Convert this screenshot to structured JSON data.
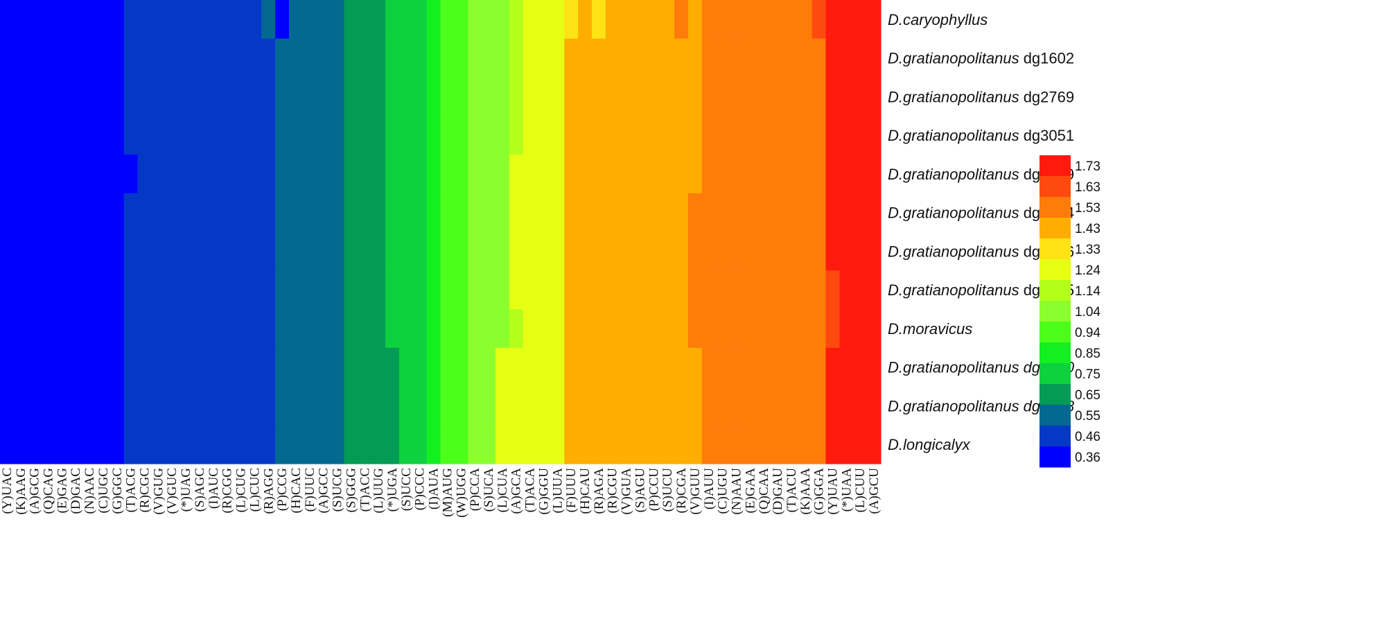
{
  "chart_data": {
    "type": "heatmap",
    "title": "",
    "xlabel": "",
    "ylabel": "",
    "columns": [
      "(Y)UAC",
      "(K)AAG",
      "(A)GCG",
      "(Q)CAG",
      "(E)GAG",
      "(D)GAC",
      "(N)AAC",
      "(C)UGC",
      "(G)GGC",
      "(T)ACG",
      "(R)CGC",
      "(V)GUG",
      "(V)GUC",
      "(*)UAG",
      "(S)AGC",
      "(I)AUC",
      "(R)CGG",
      "(L)CUG",
      "(L)CUC",
      "(R)AGG",
      "(P)CCG",
      "(H)CAC",
      "(F)UUC",
      "(A)GCC",
      "(S)UCG",
      "(S)GGG",
      "(T)ACC",
      "(L)UUG",
      "(*)UGA",
      "(S)UCC",
      "(P)CCC",
      "(I)AUA",
      "(M)AUG",
      "(W)UGG",
      "(P)CCA",
      "(S)UCA",
      "(L)CUA",
      "(A)GCA",
      "(T)ACA",
      "(G)GGU",
      "(L)UUA",
      "(F)UUU",
      "(H)CAU",
      "(R)AGA",
      "(R)CGU",
      "(V)GUA",
      "(S)AGU",
      "(P)CCU",
      "(S)UCU",
      "(R)CGA",
      "(V)GUU",
      "(I)AUU",
      "(C)UGU",
      "(N)AAU",
      "(E)GAA",
      "(Q)CAA",
      "(D)GAU",
      "(T)ACU",
      "(K)AAA",
      "(G)GGA",
      "(Y)UAU",
      "(*)UAA",
      "(L)CUU",
      "(A)GCU"
    ],
    "rows": [
      {
        "name_italic": "D.caryophyllus",
        "name_suffix": "",
        "values": [
          0.36,
          0.36,
          0.36,
          0.36,
          0.36,
          0.36,
          0.36,
          0.36,
          0.36,
          0.46,
          0.46,
          0.46,
          0.46,
          0.46,
          0.46,
          0.46,
          0.46,
          0.46,
          0.46,
          0.55,
          0.36,
          0.55,
          0.55,
          0.55,
          0.55,
          0.65,
          0.65,
          0.65,
          0.75,
          0.75,
          0.75,
          0.85,
          0.94,
          0.94,
          1.04,
          1.04,
          1.04,
          1.14,
          1.24,
          1.24,
          1.24,
          1.33,
          1.43,
          1.33,
          1.43,
          1.43,
          1.43,
          1.43,
          1.43,
          1.53,
          1.43,
          1.53,
          1.53,
          1.53,
          1.53,
          1.53,
          1.53,
          1.53,
          1.53,
          1.63,
          1.73,
          1.73,
          1.73,
          1.73
        ]
      },
      {
        "name_italic": "D.gratianopolitanus",
        "name_suffix": " dg1602",
        "values": [
          0.36,
          0.36,
          0.36,
          0.36,
          0.36,
          0.36,
          0.36,
          0.36,
          0.36,
          0.46,
          0.46,
          0.46,
          0.46,
          0.46,
          0.46,
          0.46,
          0.46,
          0.46,
          0.46,
          0.46,
          0.55,
          0.55,
          0.55,
          0.55,
          0.55,
          0.65,
          0.65,
          0.65,
          0.75,
          0.75,
          0.75,
          0.85,
          0.94,
          0.94,
          1.04,
          1.04,
          1.04,
          1.14,
          1.24,
          1.24,
          1.24,
          1.43,
          1.43,
          1.43,
          1.43,
          1.43,
          1.43,
          1.43,
          1.43,
          1.43,
          1.43,
          1.53,
          1.53,
          1.53,
          1.53,
          1.53,
          1.53,
          1.53,
          1.53,
          1.53,
          1.73,
          1.73,
          1.73,
          1.73
        ]
      },
      {
        "name_italic": "D.gratianopolitanus",
        "name_suffix": " dg2769",
        "values": [
          0.36,
          0.36,
          0.36,
          0.36,
          0.36,
          0.36,
          0.36,
          0.36,
          0.36,
          0.46,
          0.46,
          0.46,
          0.46,
          0.46,
          0.46,
          0.46,
          0.46,
          0.46,
          0.46,
          0.46,
          0.55,
          0.55,
          0.55,
          0.55,
          0.55,
          0.65,
          0.65,
          0.65,
          0.75,
          0.75,
          0.75,
          0.85,
          0.94,
          0.94,
          1.04,
          1.04,
          1.04,
          1.14,
          1.24,
          1.24,
          1.24,
          1.43,
          1.43,
          1.43,
          1.43,
          1.43,
          1.43,
          1.43,
          1.43,
          1.43,
          1.43,
          1.53,
          1.53,
          1.53,
          1.53,
          1.53,
          1.53,
          1.53,
          1.53,
          1.53,
          1.73,
          1.73,
          1.73,
          1.73
        ]
      },
      {
        "name_italic": "D.gratianopolitanus",
        "name_suffix": " dg3051",
        "values": [
          0.36,
          0.36,
          0.36,
          0.36,
          0.36,
          0.36,
          0.36,
          0.36,
          0.36,
          0.46,
          0.46,
          0.46,
          0.46,
          0.46,
          0.46,
          0.46,
          0.46,
          0.46,
          0.46,
          0.46,
          0.55,
          0.55,
          0.55,
          0.55,
          0.55,
          0.65,
          0.65,
          0.65,
          0.75,
          0.75,
          0.75,
          0.85,
          0.94,
          0.94,
          1.04,
          1.04,
          1.04,
          1.14,
          1.24,
          1.24,
          1.24,
          1.43,
          1.43,
          1.43,
          1.43,
          1.43,
          1.43,
          1.43,
          1.43,
          1.43,
          1.43,
          1.53,
          1.53,
          1.53,
          1.53,
          1.53,
          1.53,
          1.53,
          1.53,
          1.53,
          1.73,
          1.73,
          1.73,
          1.73
        ]
      },
      {
        "name_italic": "D.gratianopolitanus",
        "name_suffix": " dg1869",
        "values": [
          0.36,
          0.36,
          0.36,
          0.36,
          0.36,
          0.36,
          0.36,
          0.36,
          0.36,
          0.36,
          0.46,
          0.46,
          0.46,
          0.46,
          0.46,
          0.46,
          0.46,
          0.46,
          0.46,
          0.46,
          0.55,
          0.55,
          0.55,
          0.55,
          0.55,
          0.65,
          0.65,
          0.65,
          0.75,
          0.75,
          0.75,
          0.85,
          0.94,
          0.94,
          1.04,
          1.04,
          1.04,
          1.24,
          1.24,
          1.24,
          1.24,
          1.43,
          1.43,
          1.43,
          1.43,
          1.43,
          1.43,
          1.43,
          1.43,
          1.43,
          1.43,
          1.53,
          1.53,
          1.53,
          1.53,
          1.53,
          1.53,
          1.53,
          1.53,
          1.53,
          1.73,
          1.73,
          1.73,
          1.73
        ]
      },
      {
        "name_italic": "D.gratianopolitanus",
        "name_suffix": " dg2134",
        "values": [
          0.36,
          0.36,
          0.36,
          0.36,
          0.36,
          0.36,
          0.36,
          0.36,
          0.36,
          0.46,
          0.46,
          0.46,
          0.46,
          0.46,
          0.46,
          0.46,
          0.46,
          0.46,
          0.46,
          0.46,
          0.55,
          0.55,
          0.55,
          0.55,
          0.55,
          0.65,
          0.65,
          0.65,
          0.75,
          0.75,
          0.75,
          0.85,
          0.94,
          0.94,
          1.04,
          1.04,
          1.04,
          1.24,
          1.24,
          1.24,
          1.24,
          1.43,
          1.43,
          1.43,
          1.43,
          1.43,
          1.43,
          1.43,
          1.43,
          1.43,
          1.53,
          1.53,
          1.53,
          1.53,
          1.53,
          1.53,
          1.53,
          1.53,
          1.53,
          1.53,
          1.73,
          1.73,
          1.73,
          1.73
        ]
      },
      {
        "name_italic": "D.gratianopolitanus",
        "name_suffix": " dg1856",
        "values": [
          0.36,
          0.36,
          0.36,
          0.36,
          0.36,
          0.36,
          0.36,
          0.36,
          0.36,
          0.46,
          0.46,
          0.46,
          0.46,
          0.46,
          0.46,
          0.46,
          0.46,
          0.46,
          0.46,
          0.46,
          0.55,
          0.55,
          0.55,
          0.55,
          0.55,
          0.65,
          0.65,
          0.65,
          0.75,
          0.75,
          0.75,
          0.85,
          0.94,
          0.94,
          1.04,
          1.04,
          1.04,
          1.24,
          1.24,
          1.24,
          1.24,
          1.43,
          1.43,
          1.43,
          1.43,
          1.43,
          1.43,
          1.43,
          1.43,
          1.43,
          1.53,
          1.53,
          1.53,
          1.53,
          1.53,
          1.53,
          1.53,
          1.53,
          1.53,
          1.53,
          1.73,
          1.73,
          1.73,
          1.73
        ]
      },
      {
        "name_italic": "D.gratianopolitanus",
        "name_suffix": " dg1255",
        "values": [
          0.36,
          0.36,
          0.36,
          0.36,
          0.36,
          0.36,
          0.36,
          0.36,
          0.36,
          0.46,
          0.46,
          0.46,
          0.46,
          0.46,
          0.46,
          0.46,
          0.46,
          0.46,
          0.46,
          0.46,
          0.55,
          0.55,
          0.55,
          0.55,
          0.55,
          0.65,
          0.65,
          0.65,
          0.75,
          0.75,
          0.75,
          0.85,
          0.94,
          0.94,
          1.04,
          1.04,
          1.04,
          1.24,
          1.24,
          1.24,
          1.24,
          1.43,
          1.43,
          1.43,
          1.43,
          1.43,
          1.43,
          1.43,
          1.43,
          1.43,
          1.53,
          1.53,
          1.53,
          1.53,
          1.53,
          1.53,
          1.53,
          1.53,
          1.53,
          1.53,
          1.63,
          1.73,
          1.73,
          1.73
        ]
      },
      {
        "name_italic": "D.moravicus",
        "name_suffix": "",
        "values": [
          0.36,
          0.36,
          0.36,
          0.36,
          0.36,
          0.36,
          0.36,
          0.36,
          0.36,
          0.46,
          0.46,
          0.46,
          0.46,
          0.46,
          0.46,
          0.46,
          0.46,
          0.46,
          0.46,
          0.46,
          0.55,
          0.55,
          0.55,
          0.55,
          0.55,
          0.65,
          0.65,
          0.65,
          0.75,
          0.75,
          0.75,
          0.85,
          0.94,
          0.94,
          1.04,
          1.04,
          1.04,
          1.14,
          1.24,
          1.24,
          1.24,
          1.43,
          1.43,
          1.43,
          1.43,
          1.43,
          1.43,
          1.43,
          1.43,
          1.43,
          1.53,
          1.53,
          1.53,
          1.53,
          1.53,
          1.53,
          1.53,
          1.53,
          1.53,
          1.53,
          1.63,
          1.73,
          1.73,
          1.73
        ]
      },
      {
        "name_italic": "D.gratianopolitanus dg1370",
        "name_suffix": "",
        "values": [
          0.36,
          0.36,
          0.36,
          0.36,
          0.36,
          0.36,
          0.36,
          0.36,
          0.36,
          0.46,
          0.46,
          0.46,
          0.46,
          0.46,
          0.46,
          0.46,
          0.46,
          0.46,
          0.46,
          0.46,
          0.55,
          0.55,
          0.55,
          0.55,
          0.55,
          0.65,
          0.65,
          0.65,
          0.65,
          0.75,
          0.75,
          0.85,
          0.94,
          0.94,
          1.04,
          1.04,
          1.24,
          1.24,
          1.24,
          1.24,
          1.24,
          1.43,
          1.43,
          1.43,
          1.43,
          1.43,
          1.43,
          1.43,
          1.43,
          1.43,
          1.43,
          1.53,
          1.53,
          1.53,
          1.53,
          1.53,
          1.53,
          1.53,
          1.53,
          1.53,
          1.73,
          1.73,
          1.73,
          1.73
        ]
      },
      {
        "name_italic": "D.gratianopolitanus dg2868",
        "name_suffix": "",
        "values": [
          0.36,
          0.36,
          0.36,
          0.36,
          0.36,
          0.36,
          0.36,
          0.36,
          0.36,
          0.46,
          0.46,
          0.46,
          0.46,
          0.46,
          0.46,
          0.46,
          0.46,
          0.46,
          0.46,
          0.46,
          0.55,
          0.55,
          0.55,
          0.55,
          0.55,
          0.65,
          0.65,
          0.65,
          0.65,
          0.75,
          0.75,
          0.85,
          0.94,
          0.94,
          1.04,
          1.04,
          1.24,
          1.24,
          1.24,
          1.24,
          1.24,
          1.43,
          1.43,
          1.43,
          1.43,
          1.43,
          1.43,
          1.43,
          1.43,
          1.43,
          1.43,
          1.53,
          1.53,
          1.53,
          1.53,
          1.53,
          1.53,
          1.53,
          1.53,
          1.53,
          1.73,
          1.73,
          1.73,
          1.73
        ]
      },
      {
        "name_italic": "D.longicalyx",
        "name_suffix": "",
        "values": [
          0.36,
          0.36,
          0.36,
          0.36,
          0.36,
          0.36,
          0.36,
          0.36,
          0.36,
          0.46,
          0.46,
          0.46,
          0.46,
          0.46,
          0.46,
          0.46,
          0.46,
          0.46,
          0.46,
          0.46,
          0.55,
          0.55,
          0.55,
          0.55,
          0.55,
          0.65,
          0.65,
          0.65,
          0.65,
          0.75,
          0.75,
          0.85,
          0.94,
          0.94,
          1.04,
          1.04,
          1.24,
          1.24,
          1.24,
          1.24,
          1.24,
          1.43,
          1.43,
          1.43,
          1.43,
          1.43,
          1.43,
          1.43,
          1.43,
          1.43,
          1.43,
          1.53,
          1.53,
          1.53,
          1.53,
          1.53,
          1.53,
          1.53,
          1.53,
          1.53,
          1.73,
          1.73,
          1.73,
          1.73
        ]
      }
    ],
    "legend": {
      "placement": "right",
      "values": [
        "1.73",
        "1.63",
        "1.53",
        "1.43",
        "1.33",
        "1.24",
        "1.14",
        "1.04",
        "0.94",
        "0.85",
        "0.75",
        "0.65",
        "0.55",
        "0.46",
        "0.36"
      ],
      "colors": [
        "#ff1a0e",
        "#ff4a0f",
        "#ff7b0a",
        "#ffad00",
        "#ffe315",
        "#e6ff14",
        "#b4ff1a",
        "#8aff2d",
        "#4cff1a",
        "#14ef22",
        "#0ed13f",
        "#039b55",
        "#046991",
        "#0439c8",
        "#0000ff"
      ]
    },
    "grid": false
  }
}
